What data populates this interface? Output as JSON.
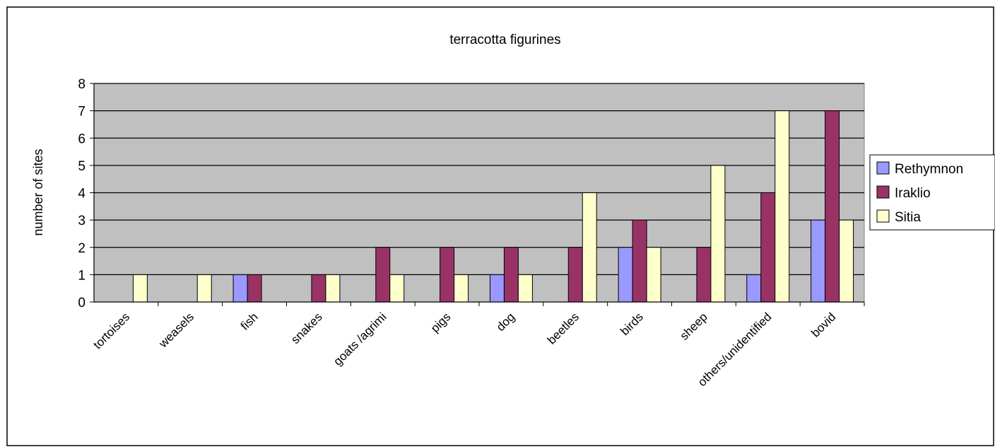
{
  "chart_data": {
    "type": "bar",
    "title": "terracotta figurines",
    "xlabel": "",
    "ylabel": "number of sites",
    "ylim": [
      0,
      8
    ],
    "yticks": [
      "0",
      "1",
      "2",
      "3",
      "4",
      "5",
      "6",
      "7",
      "8"
    ],
    "grid": true,
    "legend_position": "right",
    "categories": [
      "tortoises",
      "weasels",
      "fish",
      "snakes",
      "goats /agrimi",
      "pigs",
      "dog",
      "beetles",
      "birds",
      "sheep",
      "others/unidentified",
      "bovid"
    ],
    "series": [
      {
        "name": "Rethymnon",
        "color": "#9999ff",
        "values": [
          0,
          0,
          1,
          0,
          0,
          0,
          1,
          0,
          2,
          0,
          1,
          3
        ]
      },
      {
        "name": "Iraklio",
        "color": "#993366",
        "values": [
          0,
          0,
          1,
          1,
          2,
          2,
          2,
          2,
          3,
          2,
          4,
          7
        ]
      },
      {
        "name": "Sitia",
        "color": "#ffffcc",
        "values": [
          1,
          1,
          0,
          1,
          1,
          1,
          1,
          4,
          2,
          5,
          7,
          3
        ]
      }
    ],
    "plot_background": "#c0c0c0"
  }
}
